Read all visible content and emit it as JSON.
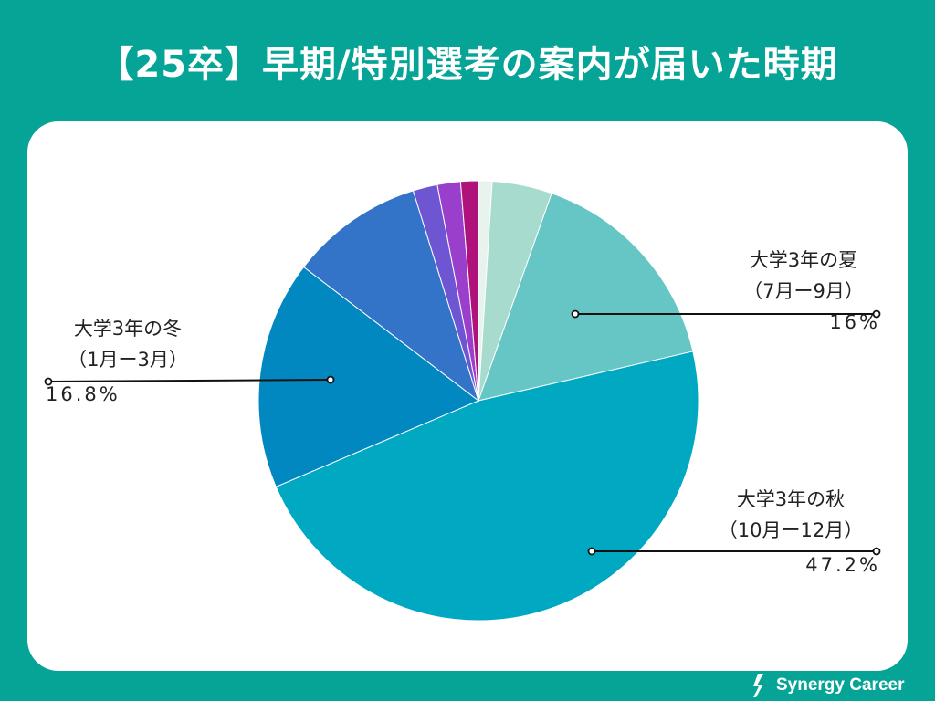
{
  "title": "【25卒】早期/特別選考の案内が届いた時期",
  "chart_data": {
    "type": "pie",
    "title": "【25卒】早期/特別選考の案内が届いた時期",
    "start_angle_deg": 0,
    "direction": "clockwise",
    "slices": [
      {
        "label": "",
        "value": 1.0,
        "color": "#e7f3ec"
      },
      {
        "label": "",
        "value": 4.4,
        "color": "#a6dbce"
      },
      {
        "label": "大学3年の夏",
        "sublabel": "（7月ー9月）",
        "pct_label": "16%",
        "value": 16.0,
        "color": "#66c6c5"
      },
      {
        "label": "大学3年の秋",
        "sublabel": "（10月ー12月）",
        "pct_label": "47.2%",
        "value": 47.2,
        "color": "#00a8c2"
      },
      {
        "label": "大学3年の冬",
        "sublabel": "（1月ー3月）",
        "pct_label": "16.8%",
        "value": 16.8,
        "color": "#0188c0"
      },
      {
        "label": "",
        "value": 9.8,
        "color": "#3374c8"
      },
      {
        "label": "",
        "value": 1.8,
        "color": "#6e56d3"
      },
      {
        "label": "",
        "value": 1.7,
        "color": "#9a3fcb"
      },
      {
        "label": "",
        "value": 1.3,
        "color": "#b0127c"
      }
    ]
  },
  "labels": {
    "summer": {
      "title": "大学3年の夏",
      "sub": "（7月ー9月）",
      "pct": "16%"
    },
    "autumn": {
      "title": "大学3年の秋",
      "sub": "（10月ー12月）",
      "pct": "47.2%"
    },
    "winter": {
      "title": "大学3年の冬",
      "sub": "（1月ー3月）",
      "pct": "16.8%"
    }
  },
  "logo": {
    "text": "Synergy Career",
    "icon": "synergy-logo-icon"
  }
}
